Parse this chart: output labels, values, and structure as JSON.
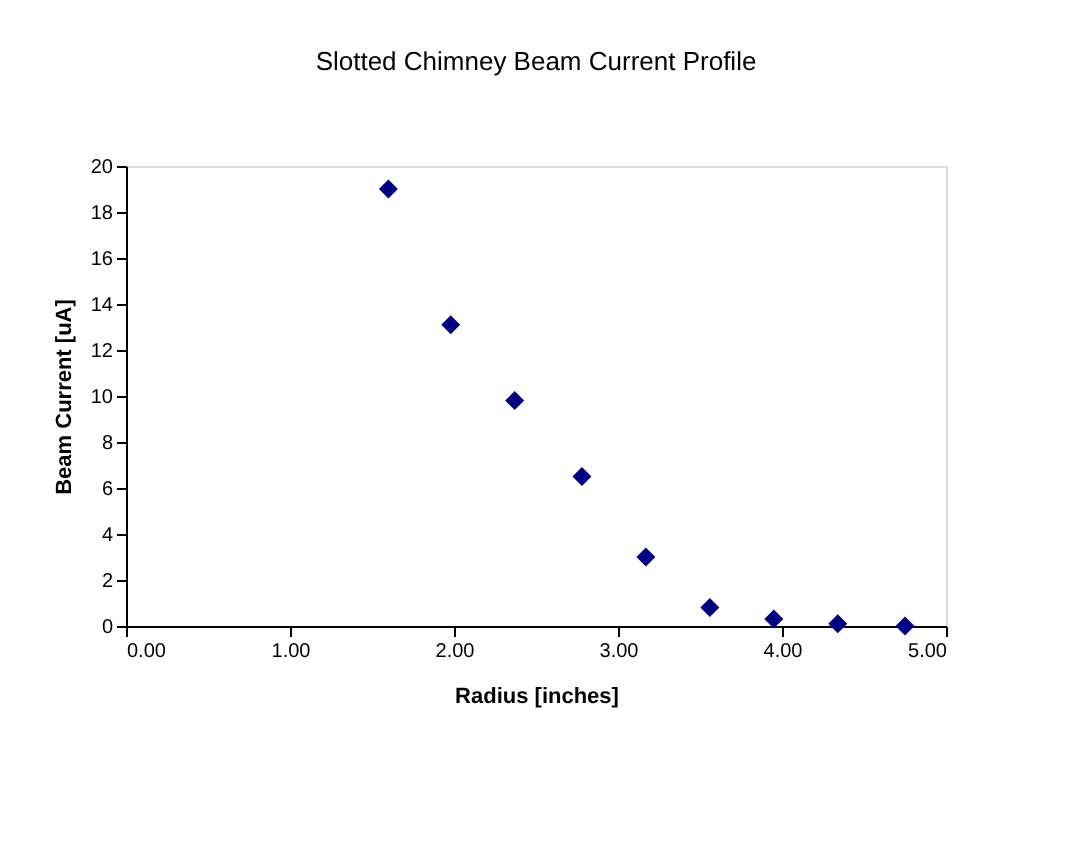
{
  "chart_data": {
    "type": "scatter",
    "title": "Slotted Chimney Beam Current Profile",
    "xlabel": "Radius [inches]",
    "ylabel": "Beam Current [uA]",
    "x": [
      1.6,
      1.98,
      2.37,
      2.78,
      3.17,
      3.56,
      3.95,
      4.34,
      4.75
    ],
    "series": [
      {
        "color": "#000080",
        "values": [
          19.0,
          13.1,
          9.8,
          6.5,
          3.0,
          0.8,
          0.3,
          0.1,
          0.0
        ]
      }
    ],
    "xlim": [
      0,
      5
    ],
    "xticks": [
      {
        "value": 0,
        "label": "0.00"
      },
      {
        "value": 1,
        "label": "1.00"
      },
      {
        "value": 2,
        "label": "2.00"
      },
      {
        "value": 3,
        "label": "3.00"
      },
      {
        "value": 4,
        "label": "4.00"
      },
      {
        "value": 5,
        "label": "5.00"
      }
    ],
    "ylim": [
      0,
      20
    ],
    "yticks": [
      0,
      2,
      4,
      6,
      8,
      10,
      12,
      14,
      16,
      18,
      20
    ],
    "grid": false,
    "legend": false,
    "marker": "diamond"
  }
}
